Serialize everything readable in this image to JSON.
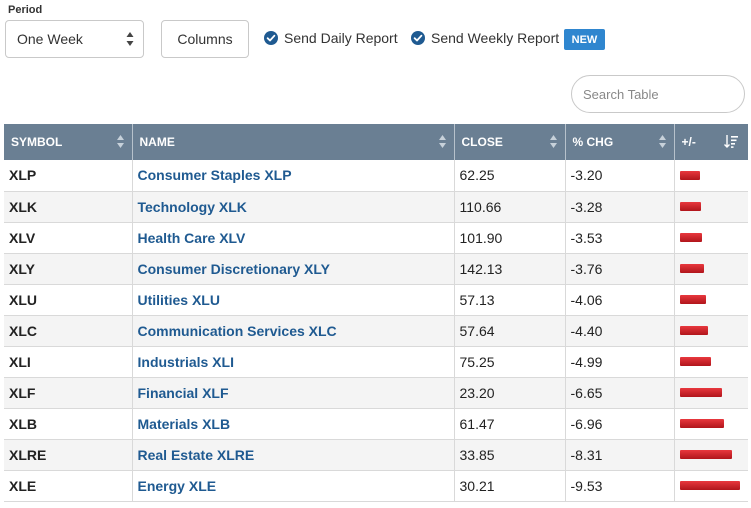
{
  "controls": {
    "period_label": "Period",
    "period_value": "One Week",
    "columns_label": "Columns",
    "daily_report_label": "Send Daily Report",
    "weekly_report_label": "Send Weekly Report",
    "new_badge": "NEW",
    "search_placeholder": "Search Table"
  },
  "colors": {
    "header_bg": "#6a7f93",
    "link": "#1f5a91",
    "negative_bar": "#d0232a",
    "badge": "#2f86cf"
  },
  "table": {
    "headers": {
      "symbol": "SYMBOL",
      "name": "NAME",
      "close": "CLOSE",
      "chg": "% CHG",
      "plusminus": "+/-"
    },
    "sort_column": "plusminus",
    "rows": [
      {
        "symbol": "XLP",
        "name": "Consumer Staples XLP",
        "close": "62.25",
        "chg": "-3.20"
      },
      {
        "symbol": "XLK",
        "name": "Technology XLK",
        "close": "110.66",
        "chg": "-3.28"
      },
      {
        "symbol": "XLV",
        "name": "Health Care XLV",
        "close": "101.90",
        "chg": "-3.53"
      },
      {
        "symbol": "XLY",
        "name": "Consumer Discretionary XLY",
        "close": "142.13",
        "chg": "-3.76"
      },
      {
        "symbol": "XLU",
        "name": "Utilities XLU",
        "close": "57.13",
        "chg": "-4.06"
      },
      {
        "symbol": "XLC",
        "name": "Communication Services XLC",
        "close": "57.64",
        "chg": "-4.40"
      },
      {
        "symbol": "XLI",
        "name": "Industrials XLI",
        "close": "75.25",
        "chg": "-4.99"
      },
      {
        "symbol": "XLF",
        "name": "Financial XLF",
        "close": "23.20",
        "chg": "-6.65"
      },
      {
        "symbol": "XLB",
        "name": "Materials XLB",
        "close": "61.47",
        "chg": "-6.96"
      },
      {
        "symbol": "XLRE",
        "name": "Real Estate XLRE",
        "close": "33.85",
        "chg": "-8.31"
      },
      {
        "symbol": "XLE",
        "name": "Energy XLE",
        "close": "30.21",
        "chg": "-9.53"
      }
    ]
  }
}
